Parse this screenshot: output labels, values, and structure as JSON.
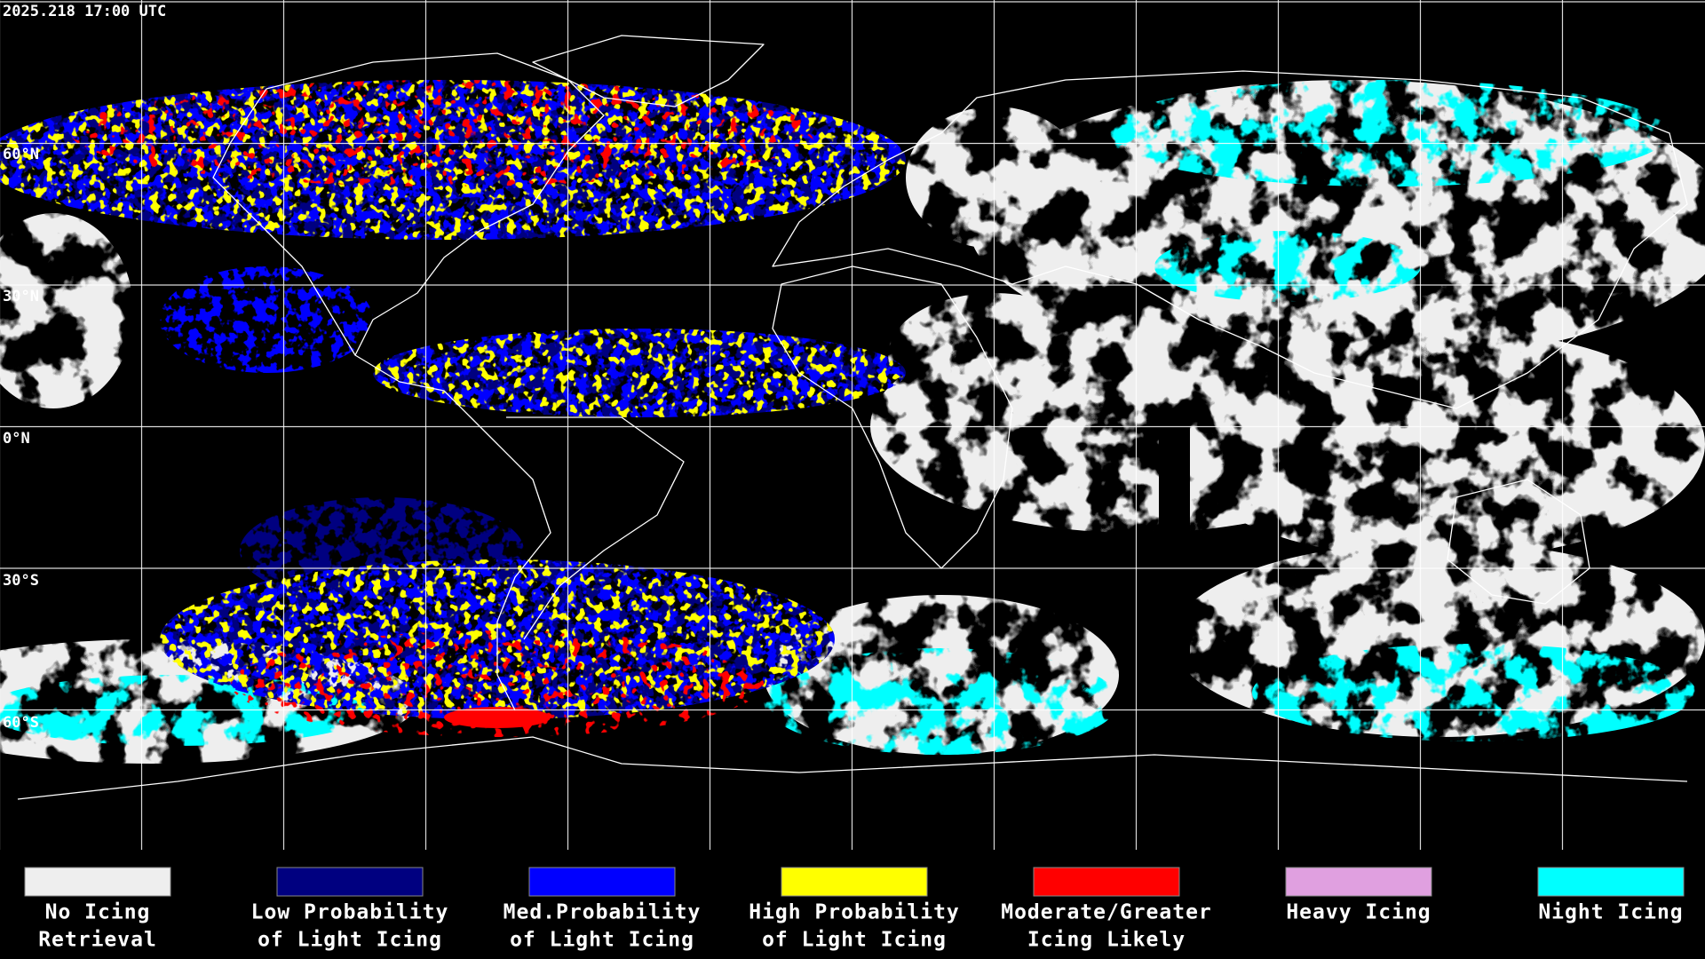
{
  "header": {
    "timestamp": "2025.218 17:00 UTC"
  },
  "map": {
    "latitude_labels": [
      "60°N",
      "30°N",
      "0°N",
      "30°S",
      "60°S"
    ]
  },
  "legend": {
    "items": [
      {
        "label_lines": [
          "No Icing",
          "Retrieval"
        ],
        "color": "#eeeeee"
      },
      {
        "label_lines": [
          "Low Probability",
          "of Light Icing"
        ],
        "color": "#000080"
      },
      {
        "label_lines": [
          "Med.Probability",
          "of Light Icing"
        ],
        "color": "#0000ff"
      },
      {
        "label_lines": [
          "High Probability",
          "of Light Icing"
        ],
        "color": "#ffff00"
      },
      {
        "label_lines": [
          "Moderate/Greater",
          "Icing Likely"
        ],
        "color": "#ff0000"
      },
      {
        "label_lines": [
          "Heavy Icing"
        ],
        "color": "#e0a0e0"
      },
      {
        "label_lines": [
          "Night Icing"
        ],
        "color": "#00ffff"
      }
    ]
  }
}
